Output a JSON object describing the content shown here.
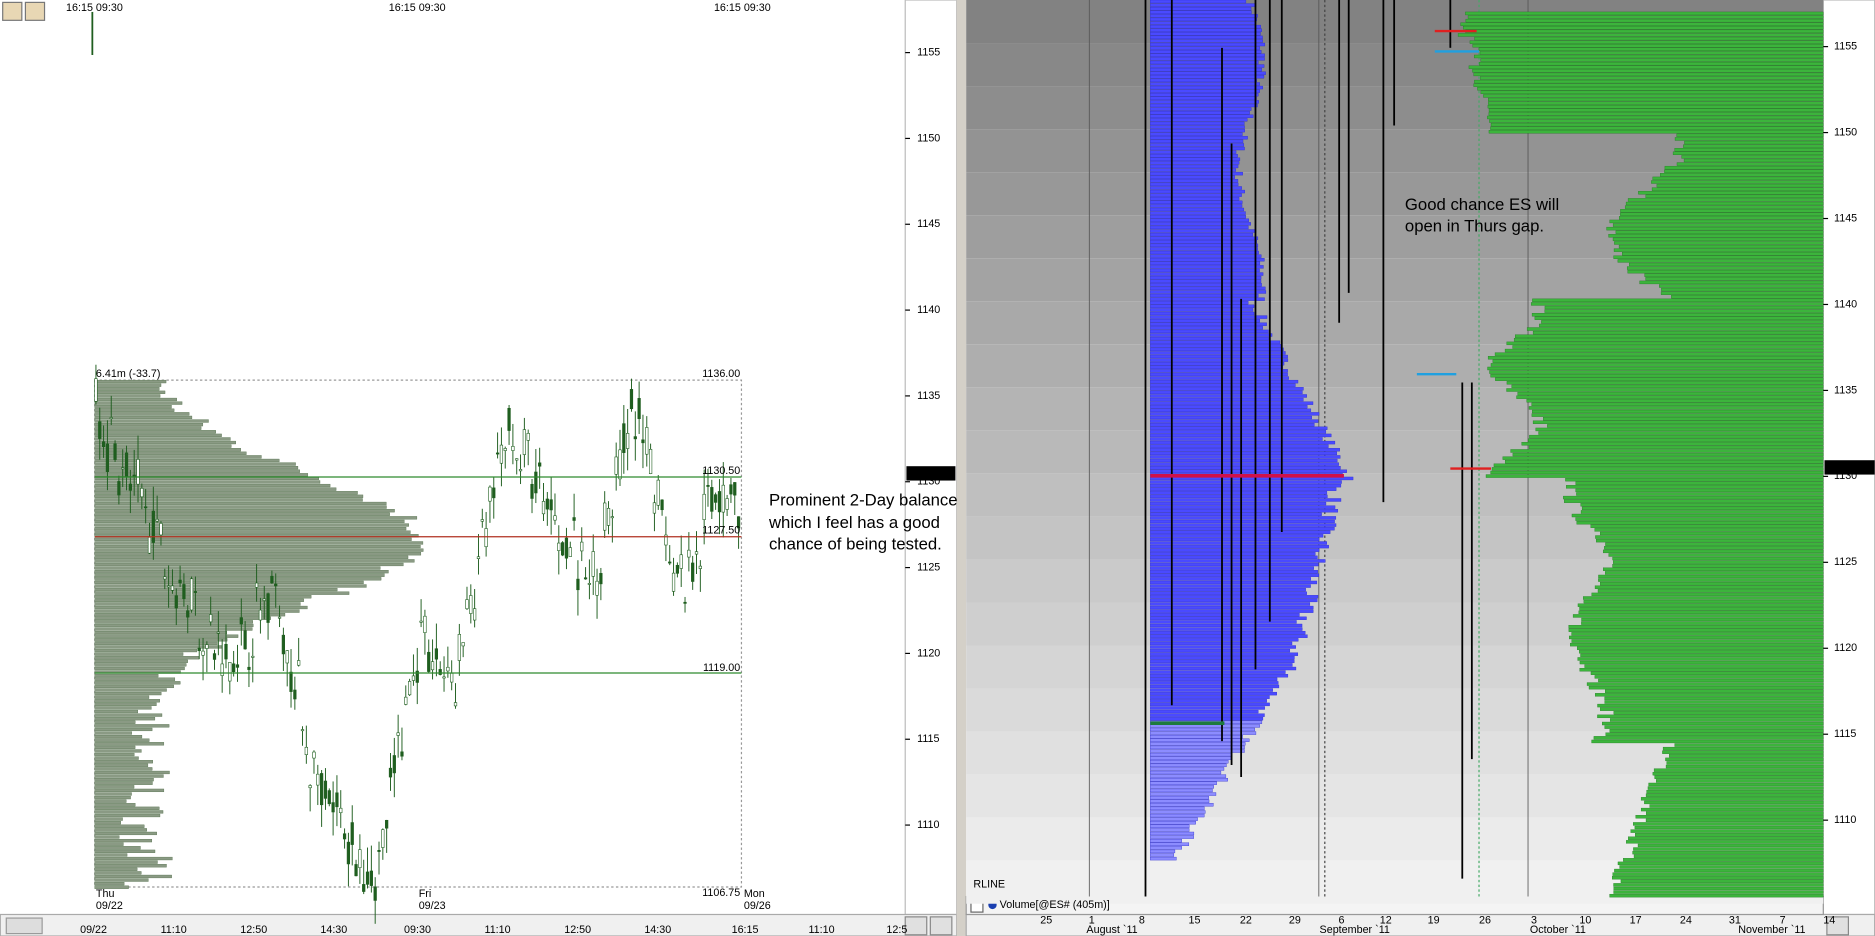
{
  "left_panel": {
    "session_labels": [
      "16:15  09:30",
      "16:15  09:30",
      "16:15  09:30"
    ],
    "price_axis": [
      "1155",
      "1150",
      "1145",
      "1140",
      "1135",
      "1130",
      "1125",
      "1120",
      "1115",
      "1110"
    ],
    "last_price": "1130.75",
    "profile_labels": {
      "volume": "6.41m (-33.7)",
      "high": "1136.00",
      "vah": "1130.50",
      "poc": "1127.50",
      "val": "1119.00",
      "low": "1106.75"
    },
    "day_labels": [
      {
        "day": "Thu",
        "date": "09/22"
      },
      {
        "day": "Fri",
        "date": "09/23"
      },
      {
        "day": "Mon",
        "date": "09/26"
      }
    ],
    "time_axis": [
      "09/22",
      "11:10",
      "12:50",
      "14:30",
      "09:30",
      "11:10",
      "12:50",
      "14:30",
      "16:15",
      "11:10",
      "12:5"
    ],
    "annotation": [
      "Prominent 2-Day balance",
      "which I feel has a good",
      "chance of being tested."
    ]
  },
  "right_panel": {
    "price_axis": [
      "1155",
      "1150",
      "1145",
      "1140",
      "1135",
      "1130",
      "1125",
      "1120",
      "1115",
      "1110"
    ],
    "last_price": "1130.75",
    "annotation": [
      "Good chance ES will",
      "open in Thurs gap."
    ],
    "rline": "RLINE",
    "indicator": "Volume[@ES# (405m)]",
    "day_axis": [
      "25",
      "1",
      "8",
      "15",
      "22",
      "29",
      "6",
      "12",
      "19",
      "26",
      "3",
      "10",
      "17",
      "24",
      "31",
      "7",
      "14"
    ],
    "month_axis": [
      "August `11",
      "September `11",
      "October `11",
      "November `11"
    ]
  }
}
